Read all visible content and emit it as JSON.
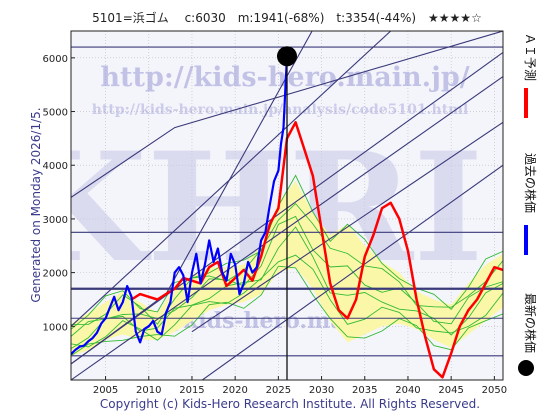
{
  "header": {
    "title": "5101=浜ゴム　 c:6030　m:1941(-68%)　t:3354(-44%)　★★★★☆"
  },
  "side_text": "Generated on Monday 2026/1/5.",
  "copyright": "Copyright (c) Kids-Hero Research Institute. All Rights Reserved.",
  "watermarks": {
    "url_large": "http://kids-hero.main.jp/",
    "url_small": "http://kids-hero.main.jp/analysis/code5101.html",
    "logo": "KHRI",
    "email": "@kids-hero.main"
  },
  "legend": {
    "latest_label": "最新の株価",
    "past_label": "過去の株価",
    "ai_label": "ＡＩ予測",
    "latest_color": "#000000",
    "past_color": "#0000ff",
    "ai_color": "#ff0000"
  },
  "colors": {
    "plot_bg": "#f4f4fb",
    "grid": "#bbbbbb",
    "band_fill": "#fbf7a8",
    "band_line": "#33bb33",
    "channel": "#3a3a7a",
    "past": "#0000ff",
    "ai": "#ff0000",
    "latest_dot": "#000000"
  },
  "chart_data": {
    "type": "line",
    "title": "5101=浜ゴム　 c:6030　m:1941(-68%)　t:3354(-44%)　★★★★☆",
    "xlabel": "",
    "ylabel": "",
    "xlim": [
      2001,
      2051
    ],
    "ylim": [
      0,
      6500
    ],
    "x_ticks": [
      2005,
      2010,
      2015,
      2020,
      2025,
      2030,
      2035,
      2040,
      2045,
      2050
    ],
    "y_ticks": [
      1000,
      2000,
      3000,
      4000,
      5000,
      6000
    ],
    "grid": true,
    "latest": {
      "x": 2026.0,
      "y": 6030
    },
    "horizontal_levels": [
      6200,
      2750,
      1700,
      1150,
      450
    ],
    "channels": [
      [
        [
          2001,
          300
        ],
        [
          2012,
          1600
        ],
        [
          2028.9,
          6500
        ]
      ],
      [
        [
          2001,
          1000
        ],
        [
          2038,
          6500
        ]
      ],
      [
        [
          2001,
          3400
        ],
        [
          2013,
          4700
        ],
        [
          2051,
          6500
        ]
      ],
      [
        [
          2001,
          300
        ],
        [
          2051,
          6100
        ]
      ],
      [
        [
          2001,
          0
        ],
        [
          2051,
          5650
        ]
      ],
      [
        [
          2015,
          900
        ],
        [
          2051,
          4800
        ]
      ],
      [
        [
          2016.2,
          0
        ],
        [
          2051,
          4000
        ]
      ]
    ],
    "series": [
      {
        "name": "過去の株価",
        "x": [
          2001.0,
          2001.5,
          2002.0,
          2002.5,
          2003.0,
          2003.5,
          2004.0,
          2004.5,
          2005.0,
          2005.5,
          2006.0,
          2006.5,
          2007.0,
          2007.5,
          2008.0,
          2008.5,
          2009.0,
          2009.5,
          2010.0,
          2010.5,
          2011.0,
          2011.5,
          2012.0,
          2012.5,
          2013.0,
          2013.5,
          2014.0,
          2014.5,
          2015.0,
          2015.5,
          2016.0,
          2016.5,
          2017.0,
          2017.5,
          2018.0,
          2018.5,
          2019.0,
          2019.5,
          2020.0,
          2020.5,
          2021.0,
          2021.5,
          2022.0,
          2022.5,
          2023.0,
          2023.5,
          2024.0,
          2024.5,
          2025.0,
          2025.3,
          2025.6,
          2025.8,
          2026.0
        ],
        "values": [
          480,
          560,
          620,
          640,
          720,
          780,
          880,
          1050,
          1150,
          1350,
          1550,
          1300,
          1450,
          1750,
          1550,
          900,
          700,
          950,
          1000,
          1100,
          900,
          850,
          1250,
          1450,
          2000,
          2100,
          1950,
          1450,
          2000,
          2350,
          1800,
          2150,
          2600,
          2200,
          2450,
          2000,
          1850,
          2350,
          2150,
          1600,
          1800,
          2200,
          2000,
          2100,
          2600,
          2750,
          3250,
          3700,
          3900,
          4400,
          4700,
          5400,
          6030
        ]
      },
      {
        "name": "ＡＩ予測",
        "x": [
          2008.0,
          2009.0,
          2010.0,
          2011.0,
          2012.0,
          2013.0,
          2014.0,
          2015.0,
          2016.0,
          2017.0,
          2018.0,
          2019.0,
          2020.0,
          2021.0,
          2022.0,
          2023.0,
          2024.0,
          2025.0,
          2026.0,
          2027.0,
          2028.0,
          2029.0,
          2030.0,
          2031.0,
          2032.0,
          2033.0,
          2034.0,
          2035.0,
          2036.0,
          2037.0,
          2038.0,
          2039.0,
          2040.0,
          2041.0,
          2042.0,
          2043.0,
          2044.0,
          2045.0,
          2046.0,
          2047.0,
          2048.0,
          2049.0,
          2050.0,
          2051.0
        ],
        "values": [
          1500,
          1600,
          1550,
          1500,
          1600,
          1700,
          1900,
          1850,
          1800,
          2100,
          2200,
          1750,
          1900,
          2050,
          1850,
          2300,
          2900,
          3200,
          4500,
          4800,
          4300,
          3800,
          2800,
          1800,
          1300,
          1150,
          1500,
          2300,
          2700,
          3200,
          3300,
          3000,
          2400,
          1500,
          800,
          200,
          50,
          500,
          1000,
          1300,
          1500,
          1800,
          2100,
          2050
        ]
      },
      {
        "name": "band_upper",
        "x": [
          2001,
          2003,
          2005,
          2007,
          2009,
          2011,
          2013,
          2015,
          2017,
          2019,
          2021,
          2023,
          2025,
          2027,
          2029,
          2031,
          2033,
          2035,
          2037,
          2039,
          2041,
          2043,
          2045,
          2047,
          2049,
          2051
        ],
        "values": [
          1050,
          1250,
          1450,
          1650,
          1450,
          1250,
          1700,
          1950,
          2100,
          2100,
          2150,
          2500,
          3300,
          3700,
          3100,
          2700,
          2900,
          2500,
          2200,
          2000,
          1650,
          1500,
          1400,
          1800,
          2150,
          2350
        ]
      },
      {
        "name": "band_lower",
        "x": [
          2001,
          2003,
          2005,
          2007,
          2009,
          2011,
          2013,
          2015,
          2017,
          2019,
          2021,
          2023,
          2025,
          2027,
          2029,
          2031,
          2033,
          2035,
          2037,
          2039,
          2041,
          2043,
          2045,
          2047,
          2049,
          2051
        ],
        "values": [
          450,
          550,
          750,
          850,
          750,
          750,
          900,
          1100,
          1300,
          1400,
          1450,
          1600,
          2000,
          2100,
          1700,
          1100,
          700,
          850,
          1000,
          1050,
          950,
          750,
          600,
          850,
          1100,
          1350
        ]
      }
    ]
  }
}
